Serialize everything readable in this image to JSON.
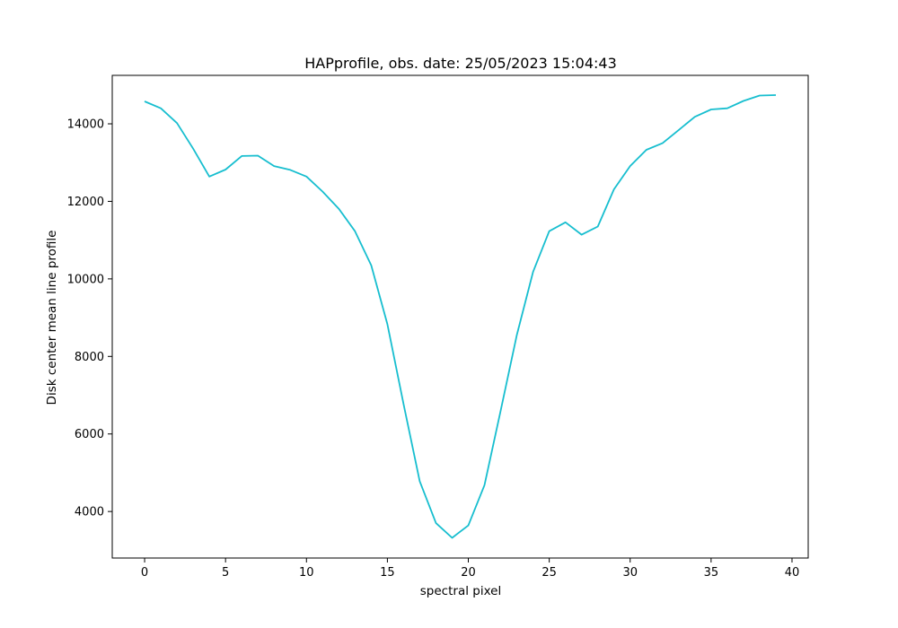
{
  "chart_data": {
    "type": "line",
    "title": "HAPprofile, obs. date: 25/05/2023 15:04:43",
    "xlabel": "spectral pixel",
    "ylabel": "Disk center mean line profile",
    "xlim": [
      -2,
      41
    ],
    "ylim": [
      2800,
      15250
    ],
    "xticks": [
      0,
      5,
      10,
      15,
      20,
      25,
      30,
      35,
      40
    ],
    "yticks": [
      4000,
      6000,
      8000,
      10000,
      12000,
      14000
    ],
    "grid": false,
    "series": [
      {
        "color": "#17becf",
        "x": [
          0,
          1,
          2,
          3,
          4,
          5,
          6,
          7,
          8,
          9,
          10,
          11,
          12,
          13,
          14,
          15,
          16,
          17,
          18,
          19,
          20,
          21,
          22,
          23,
          24,
          25,
          26,
          27,
          28,
          29,
          30,
          31,
          32,
          33,
          34,
          35,
          36,
          37,
          38,
          39
        ],
        "y": [
          14580,
          14400,
          14020,
          13360,
          12640,
          12820,
          13170,
          13180,
          12910,
          12810,
          12640,
          12250,
          11810,
          11230,
          10350,
          8830,
          6770,
          4780,
          3700,
          3320,
          3640,
          4680,
          6610,
          8560,
          10180,
          11230,
          11460,
          11140,
          11350,
          12310,
          12910,
          13330,
          13500,
          13840,
          14180,
          14370,
          14400,
          14590,
          14730,
          14740
        ]
      }
    ]
  }
}
